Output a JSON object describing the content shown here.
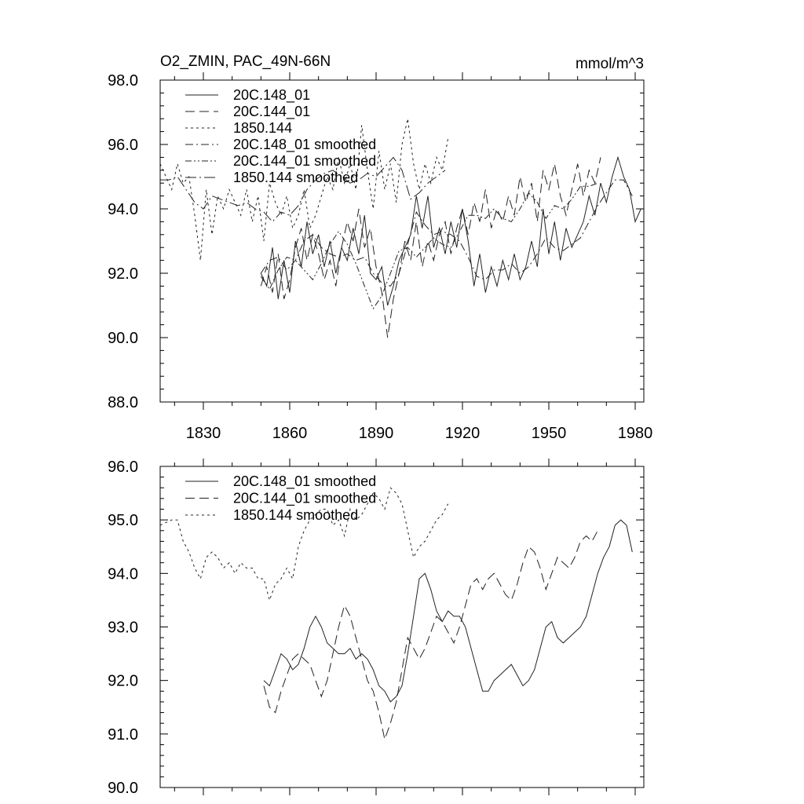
{
  "chart_data": [
    {
      "type": "line",
      "title": "O2_ZMIN, PAC_49N-66N",
      "units": "mmol/m^3",
      "xlim": [
        1815,
        1983
      ],
      "ylim": [
        88,
        98
      ],
      "xticks": [
        1830,
        1860,
        1890,
        1920,
        1950,
        1980
      ],
      "yticks": [
        88,
        90,
        92,
        94,
        96,
        98
      ],
      "ytick_labels": [
        "88.0",
        "90.0",
        "92.0",
        "94.0",
        "96.0",
        "98.0"
      ],
      "xtick_labels": [
        "1830",
        "1860",
        "1890",
        "1920",
        "1950",
        "1980"
      ],
      "legend_position": "top-left",
      "series": [
        {
          "name": "20C.148_01",
          "dash": "solid",
          "x": [
            1850,
            1852,
            1854,
            1856,
            1858,
            1860,
            1862,
            1864,
            1866,
            1868,
            1870,
            1872,
            1874,
            1876,
            1878,
            1880,
            1882,
            1884,
            1886,
            1888,
            1890,
            1892,
            1894,
            1896,
            1898,
            1900,
            1902,
            1904,
            1906,
            1908,
            1910,
            1912,
            1914,
            1916,
            1918,
            1920,
            1922,
            1924,
            1926,
            1928,
            1930,
            1932,
            1934,
            1936,
            1938,
            1940,
            1942,
            1944,
            1946,
            1948,
            1950,
            1952,
            1954,
            1956,
            1958,
            1960,
            1962,
            1964,
            1966,
            1968,
            1970,
            1972,
            1974,
            1976,
            1978,
            1980,
            1982
          ],
          "values": [
            92.0,
            91.6,
            92.8,
            91.2,
            92.4,
            91.4,
            93.0,
            92.2,
            93.6,
            92.6,
            93.2,
            92.2,
            93.0,
            92.0,
            92.8,
            92.4,
            93.4,
            92.6,
            93.8,
            92.0,
            91.8,
            92.2,
            91.0,
            91.6,
            92.4,
            92.8,
            93.2,
            94.4,
            93.4,
            94.4,
            92.8,
            93.4,
            92.6,
            93.6,
            92.8,
            94.0,
            93.0,
            91.6,
            92.6,
            91.4,
            92.2,
            91.6,
            92.4,
            91.8,
            92.6,
            91.8,
            92.2,
            93.0,
            92.2,
            94.0,
            92.6,
            93.6,
            92.4,
            93.4,
            92.8,
            93.2,
            93.6,
            94.4,
            93.8,
            94.8,
            94.2,
            95.0,
            95.6,
            95.0,
            94.6,
            93.6,
            94.0
          ]
        },
        {
          "name": "20C.144_01",
          "dash": "long-dash",
          "x": [
            1850,
            1852,
            1854,
            1856,
            1858,
            1860,
            1862,
            1864,
            1866,
            1868,
            1870,
            1872,
            1874,
            1876,
            1878,
            1880,
            1882,
            1884,
            1886,
            1888,
            1890,
            1892,
            1894,
            1896,
            1898,
            1900,
            1902,
            1904,
            1906,
            1908,
            1910,
            1912,
            1914,
            1916,
            1918,
            1920,
            1922,
            1924,
            1926,
            1928,
            1930,
            1932,
            1934,
            1936,
            1938,
            1940,
            1942,
            1944,
            1946,
            1948,
            1950,
            1952,
            1954,
            1956,
            1958,
            1960,
            1962,
            1964,
            1966,
            1968
          ],
          "values": [
            91.6,
            92.2,
            91.4,
            92.6,
            91.2,
            91.8,
            92.8,
            93.4,
            92.4,
            93.2,
            92.6,
            91.8,
            92.4,
            91.6,
            92.8,
            93.6,
            93.0,
            94.0,
            92.8,
            93.4,
            92.2,
            91.4,
            90.0,
            91.2,
            92.0,
            93.0,
            92.4,
            93.6,
            92.2,
            93.0,
            92.4,
            93.2,
            93.6,
            92.6,
            93.4,
            94.0,
            93.2,
            94.2,
            93.6,
            94.6,
            93.4,
            94.0,
            93.6,
            94.4,
            93.8,
            95.0,
            94.2,
            94.8,
            93.6,
            95.2,
            94.6,
            95.4,
            94.4,
            93.8,
            94.6,
            95.4,
            94.4,
            95.2,
            94.8,
            95.6
          ]
        },
        {
          "name": "1850.144",
          "dash": "short-dash",
          "x": [
            1815,
            1817,
            1819,
            1821,
            1823,
            1825,
            1827,
            1829,
            1831,
            1833,
            1835,
            1837,
            1839,
            1841,
            1843,
            1845,
            1847,
            1849,
            1851,
            1853,
            1855,
            1857,
            1859,
            1861,
            1863,
            1865,
            1867,
            1869,
            1871,
            1873,
            1875,
            1877,
            1879,
            1881,
            1883,
            1885,
            1887,
            1889,
            1891,
            1893,
            1895,
            1897,
            1899,
            1901,
            1903,
            1905,
            1907,
            1909,
            1911,
            1913,
            1915
          ],
          "values": [
            95.4,
            95.0,
            94.6,
            95.4,
            94.8,
            95.0,
            93.8,
            92.4,
            94.6,
            93.2,
            94.4,
            94.0,
            94.6,
            94.2,
            93.8,
            94.6,
            93.6,
            94.4,
            93.0,
            94.8,
            94.2,
            93.8,
            94.4,
            93.4,
            93.8,
            94.6,
            93.4,
            93.8,
            94.4,
            95.0,
            94.6,
            95.6,
            94.8,
            95.4,
            94.6,
            96.6,
            95.2,
            94.0,
            95.8,
            94.6,
            95.4,
            94.2,
            96.0,
            96.8,
            95.4,
            94.6,
            95.4,
            94.8,
            95.6,
            95.2,
            96.2
          ]
        },
        {
          "name": "20C.148_01 smoothed",
          "dash": "dash-dot",
          "x": [
            1850,
            1853,
            1856,
            1859,
            1862,
            1865,
            1868,
            1871,
            1874,
            1877,
            1880,
            1883,
            1886,
            1889,
            1892,
            1895,
            1898,
            1901,
            1904,
            1907,
            1910,
            1913,
            1916,
            1919,
            1922,
            1925,
            1928,
            1931,
            1934,
            1937,
            1940,
            1943,
            1946,
            1949,
            1952,
            1955,
            1958,
            1961,
            1964,
            1967,
            1970,
            1973,
            1976,
            1979
          ],
          "values": [
            92.0,
            92.4,
            92.5,
            92.1,
            92.4,
            93.0,
            93.2,
            92.8,
            92.6,
            92.5,
            92.6,
            92.4,
            92.5,
            92.0,
            91.7,
            91.6,
            92.0,
            92.9,
            93.9,
            93.5,
            93.2,
            93.3,
            93.2,
            93.0,
            92.5,
            91.9,
            91.8,
            92.1,
            92.1,
            92.3,
            92.0,
            92.2,
            92.6,
            93.1,
            92.8,
            92.7,
            92.9,
            93.1,
            93.6,
            94.1,
            94.5,
            94.9,
            94.9,
            94.4
          ]
        },
        {
          "name": "20C.144_01 smoothed",
          "dash": "dash-dot-dot",
          "x": [
            1850,
            1853,
            1856,
            1859,
            1862,
            1865,
            1868,
            1871,
            1874,
            1877,
            1880,
            1883,
            1886,
            1889,
            1892,
            1895,
            1898,
            1901,
            1904,
            1907,
            1910,
            1913,
            1916,
            1919,
            1922,
            1925,
            1928,
            1931,
            1934,
            1937,
            1940,
            1943,
            1946,
            1949,
            1952,
            1955,
            1958,
            1961,
            1964,
            1967
          ],
          "values": [
            91.9,
            91.5,
            92.1,
            92.5,
            92.4,
            92.1,
            91.8,
            92.3,
            92.9,
            93.3,
            92.9,
            92.3,
            91.6,
            90.9,
            91.3,
            92.0,
            92.7,
            92.8,
            92.5,
            92.8,
            93.1,
            92.9,
            92.8,
            93.3,
            93.8,
            93.8,
            93.7,
            94.0,
            93.7,
            93.6,
            94.0,
            94.5,
            94.2,
            93.7,
            94.1,
            94.0,
            94.3,
            94.7,
            94.7,
            94.8
          ]
        },
        {
          "name": "1850.144 smoothed",
          "dash": "long-dash-dot",
          "x": [
            1815,
            1818,
            1821,
            1824,
            1827,
            1830,
            1833,
            1836,
            1839,
            1842,
            1845,
            1848,
            1851,
            1854,
            1857,
            1860,
            1863,
            1866,
            1869,
            1872,
            1875,
            1878,
            1881,
            1884,
            1887,
            1890,
            1893,
            1896,
            1899,
            1902,
            1905,
            1908,
            1911,
            1914
          ],
          "values": [
            94.9,
            94.9,
            95.0,
            94.6,
            94.2,
            94.0,
            94.4,
            94.3,
            94.2,
            94.1,
            94.2,
            94.0,
            93.9,
            93.6,
            93.9,
            93.8,
            94.1,
            94.6,
            94.9,
            95.1,
            95.2,
            95.0,
            94.8,
            94.9,
            95.1,
            95.0,
            95.3,
            95.6,
            95.2,
            94.3,
            94.5,
            94.8,
            95.0,
            95.2
          ]
        }
      ]
    },
    {
      "type": "line",
      "xlim": [
        1815,
        1983
      ],
      "ylim": [
        90,
        96
      ],
      "xticks": [
        1830,
        1860,
        1890,
        1920,
        1950,
        1980
      ],
      "yticks": [
        90,
        91,
        92,
        93,
        94,
        95,
        96
      ],
      "ytick_labels": [
        "90.0",
        "91.0",
        "92.0",
        "93.0",
        "94.0",
        "95.0",
        "96.0"
      ],
      "legend_position": "top-left",
      "series": [
        {
          "name": "20C.148_01 smoothed",
          "dash": "solid",
          "x": [
            1851,
            1853,
            1855,
            1857,
            1859,
            1861,
            1863,
            1865,
            1867,
            1869,
            1871,
            1873,
            1875,
            1877,
            1879,
            1881,
            1883,
            1885,
            1887,
            1889,
            1891,
            1893,
            1895,
            1897,
            1899,
            1901,
            1903,
            1905,
            1907,
            1909,
            1911,
            1913,
            1915,
            1917,
            1919,
            1921,
            1923,
            1925,
            1927,
            1929,
            1931,
            1933,
            1935,
            1937,
            1939,
            1941,
            1943,
            1945,
            1947,
            1949,
            1951,
            1953,
            1955,
            1957,
            1959,
            1961,
            1963,
            1965,
            1967,
            1969,
            1971,
            1973,
            1975,
            1977,
            1979
          ],
          "values": [
            92.0,
            91.9,
            92.2,
            92.5,
            92.4,
            92.2,
            92.3,
            92.6,
            93.0,
            93.2,
            93.0,
            92.7,
            92.6,
            92.5,
            92.5,
            92.6,
            92.4,
            92.5,
            92.4,
            92.2,
            91.9,
            91.8,
            91.6,
            91.7,
            91.9,
            92.5,
            93.2,
            93.9,
            94.0,
            93.7,
            93.3,
            93.1,
            93.3,
            93.2,
            93.2,
            93.0,
            92.6,
            92.2,
            91.8,
            91.8,
            92.0,
            92.1,
            92.2,
            92.3,
            92.1,
            91.9,
            92.0,
            92.2,
            92.6,
            93.0,
            93.1,
            92.8,
            92.7,
            92.8,
            92.9,
            93.0,
            93.2,
            93.6,
            94.0,
            94.3,
            94.5,
            94.9,
            95.0,
            94.9,
            94.4
          ]
        },
        {
          "name": "20C.144_01 smoothed",
          "dash": "long-dash",
          "x": [
            1851,
            1853,
            1855,
            1857,
            1859,
            1861,
            1863,
            1865,
            1867,
            1869,
            1871,
            1873,
            1875,
            1877,
            1879,
            1881,
            1883,
            1885,
            1887,
            1889,
            1891,
            1893,
            1895,
            1897,
            1899,
            1901,
            1903,
            1905,
            1907,
            1909,
            1911,
            1913,
            1915,
            1917,
            1919,
            1921,
            1923,
            1925,
            1927,
            1929,
            1931,
            1933,
            1935,
            1937,
            1939,
            1941,
            1943,
            1945,
            1947,
            1949,
            1951,
            1953,
            1955,
            1957,
            1959,
            1961,
            1963,
            1965,
            1967
          ],
          "values": [
            91.9,
            91.5,
            91.4,
            91.8,
            92.1,
            92.4,
            92.5,
            92.4,
            92.3,
            92.0,
            91.7,
            92.0,
            92.5,
            93.0,
            93.4,
            93.2,
            92.8,
            92.4,
            92.0,
            91.8,
            91.4,
            90.9,
            91.2,
            91.6,
            92.2,
            92.8,
            92.6,
            92.4,
            92.6,
            92.9,
            93.2,
            93.1,
            92.9,
            92.7,
            93.0,
            93.4,
            93.8,
            93.9,
            93.7,
            93.9,
            94.0,
            93.8,
            93.6,
            93.5,
            93.8,
            94.2,
            94.5,
            94.4,
            94.1,
            93.7,
            94.0,
            94.3,
            94.2,
            94.1,
            94.3,
            94.6,
            94.7,
            94.6,
            94.8
          ]
        },
        {
          "name": "1850.144 smoothed",
          "dash": "short-dash",
          "x": [
            1815,
            1817,
            1819,
            1821,
            1823,
            1825,
            1827,
            1829,
            1831,
            1833,
            1835,
            1837,
            1839,
            1841,
            1843,
            1845,
            1847,
            1849,
            1851,
            1853,
            1855,
            1857,
            1859,
            1861,
            1863,
            1865,
            1867,
            1869,
            1871,
            1873,
            1875,
            1877,
            1879,
            1881,
            1883,
            1885,
            1887,
            1889,
            1891,
            1893,
            1895,
            1897,
            1899,
            1901,
            1903,
            1905,
            1907,
            1909,
            1911,
            1913,
            1915
          ],
          "values": [
            94.9,
            94.95,
            95.0,
            95.0,
            94.6,
            94.4,
            94.1,
            93.9,
            94.3,
            94.4,
            94.3,
            94.1,
            94.2,
            94.0,
            94.2,
            94.1,
            94.1,
            93.9,
            93.9,
            93.5,
            93.8,
            93.9,
            94.1,
            93.9,
            94.5,
            94.8,
            95.0,
            95.1,
            95.2,
            95.2,
            94.9,
            95.0,
            94.7,
            95.2,
            95.0,
            95.1,
            95.3,
            95.5,
            95.4,
            95.2,
            95.6,
            95.5,
            95.3,
            94.8,
            94.3,
            94.5,
            94.6,
            94.8,
            95.0,
            95.1,
            95.3
          ]
        }
      ]
    }
  ]
}
